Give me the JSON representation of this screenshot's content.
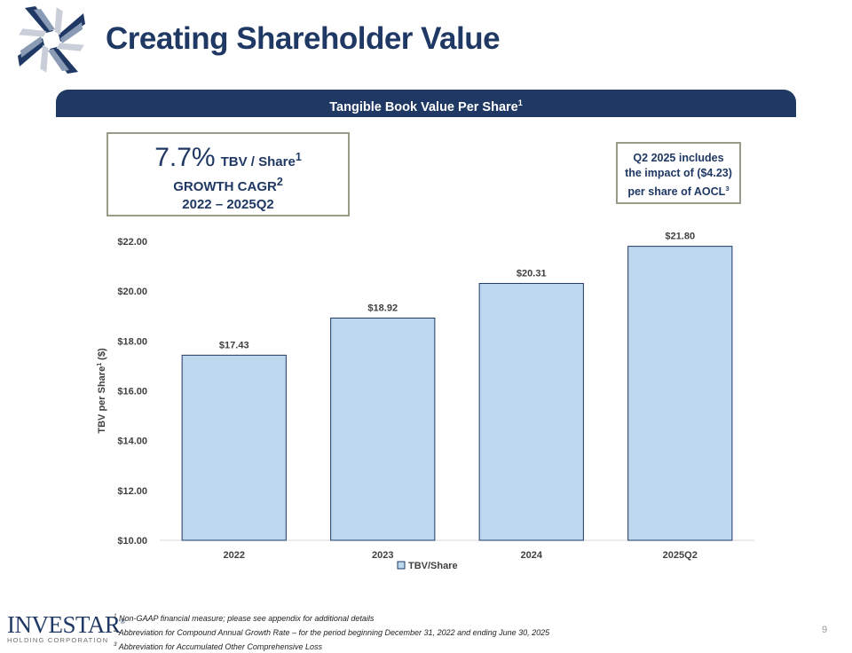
{
  "slide": {
    "title": "Creating Shareholder Value",
    "banner": {
      "text": "Tangible Book Value Per Share",
      "sup": "1"
    },
    "cagr_box": {
      "value": "7.7%",
      "label": "TBV / Share",
      "label_sup": "1",
      "line2": "GROWTH CAGR",
      "line2_sup": "2",
      "line3": "2022 – 2025Q2"
    },
    "note_box": {
      "line1": "Q2 2025 includes",
      "line2": "the impact of ($4.23)",
      "line3": "per share of AOCL",
      "line3_sup": "3"
    },
    "footnotes": [
      {
        "num": "1",
        "text": "Non-GAAP financial measure; please see appendix for additional details"
      },
      {
        "num": "2",
        "text": "Abbreviation for Compound Annual Growth Rate – for the period beginning December 31, 2022 and ending June 30, 2025"
      },
      {
        "num": "3",
        "text": "Abbreviation for Accumulated Other Comprehensive Loss"
      }
    ],
    "logo": {
      "name": "INVESTAR",
      "tm": "®",
      "subtitle": "HOLDING CORPORATION"
    },
    "page_number": "9"
  },
  "colors": {
    "navy": "#1f3864",
    "bar_fill": "#bdd7ee",
    "bar_stroke": "#1f3864",
    "box_border": "#9a9a88"
  },
  "chart_data": {
    "type": "bar",
    "categories": [
      "2022",
      "2023",
      "2024",
      "2025Q2"
    ],
    "series": [
      {
        "name": "TBV/Share",
        "values": [
          17.43,
          18.92,
          20.31,
          21.8
        ]
      }
    ],
    "value_labels": [
      "$17.43",
      "$18.92",
      "$20.31",
      "$21.80"
    ],
    "ylabel": "TBV per Share",
    "ylabel_sup": "1",
    "ylabel_suffix": " ($)",
    "ylim": [
      10,
      22
    ],
    "yticks": [
      10,
      12,
      14,
      16,
      18,
      20,
      22
    ],
    "ytick_labels": [
      "$10.00",
      "$12.00",
      "$14.00",
      "$16.00",
      "$18.00",
      "$20.00",
      "$22.00"
    ],
    "legend": "bottom",
    "grid": false
  }
}
